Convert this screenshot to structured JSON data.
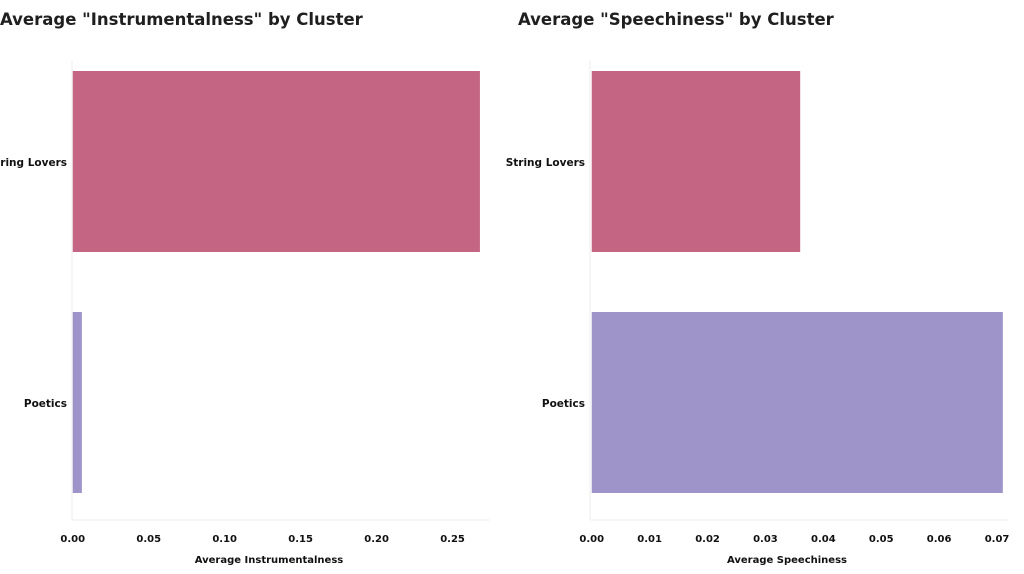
{
  "chart_data": [
    {
      "type": "bar",
      "orientation": "horizontal",
      "title": "Average \"Instrumentalness\" by Cluster",
      "categories": [
        "String Lovers",
        "Poetics"
      ],
      "values": [
        0.268,
        0.006
      ],
      "colors": [
        "#c46584",
        "#9e94ca"
      ],
      "xlabel": "Average Instrumentalness",
      "ylabel": "",
      "xlim": [
        -0.0005,
        0.272
      ],
      "xticks": [
        "0.00",
        "0.05",
        "0.10",
        "0.15",
        "0.20",
        "0.25"
      ],
      "grid": false
    },
    {
      "type": "bar",
      "orientation": "horizontal",
      "title": "Average \"Speechiness\" by Cluster",
      "categories": [
        "String Lovers",
        "Poetics"
      ],
      "values": [
        0.036,
        0.071
      ],
      "colors": [
        "#c46584",
        "#9e94ca"
      ],
      "xlabel": "Average Speechiness",
      "ylabel": "",
      "xlim": [
        -0.0003,
        0.0712
      ],
      "xticks": [
        "0.00",
        "0.01",
        "0.02",
        "0.03",
        "0.04",
        "0.05",
        "0.06",
        "0.07"
      ],
      "grid": false
    }
  ]
}
